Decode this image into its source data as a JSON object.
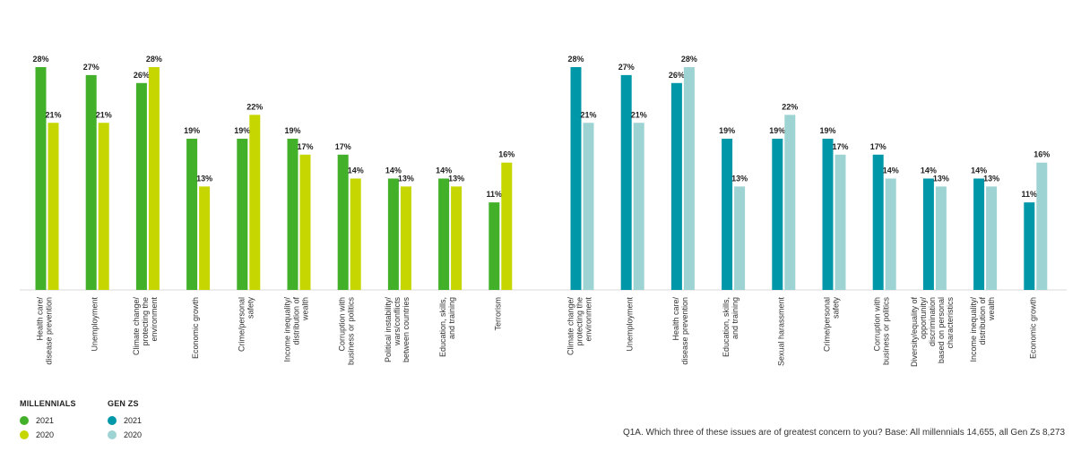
{
  "legend": {
    "millennials": {
      "title": "MILLENNIALS",
      "items": [
        {
          "label": "2021",
          "color": "#43b02a"
        },
        {
          "label": "2020",
          "color": "#c5d600"
        }
      ]
    },
    "genz": {
      "title": "GEN ZS",
      "items": [
        {
          "label": "2021",
          "color": "#0097a9"
        },
        {
          "label": "2020",
          "color": "#9dd4d3"
        }
      ]
    }
  },
  "footnote": "Q1A. Which three of these issues are of greatest concern to you? Base: All millennials 14,655, all Gen Zs 8,273",
  "chart_data": [
    {
      "type": "bar",
      "group": "Millennials",
      "categories": [
        [
          "Health care/",
          "disease prevention"
        ],
        [
          "Unemployment"
        ],
        [
          "Climate change/",
          "protecting the",
          "environment"
        ],
        [
          "Economic growth"
        ],
        [
          "Crime/personal",
          "safety"
        ],
        [
          "Income inequality/",
          "distribution of",
          "wealth"
        ],
        [
          "Corruption with",
          "business or politics"
        ],
        [
          "Political instability/",
          "wars/conflicts",
          "between countries"
        ],
        [
          "Education, skills,",
          "and training"
        ],
        [
          "Terrorism"
        ]
      ],
      "series": [
        {
          "name": "2021",
          "color": "#43b02a",
          "values": [
            28,
            27,
            26,
            19,
            19,
            19,
            17,
            14,
            14,
            11
          ]
        },
        {
          "name": "2020",
          "color": "#c5d600",
          "values": [
            21,
            21,
            28,
            13,
            22,
            17,
            14,
            13,
            13,
            16
          ]
        }
      ],
      "unit": "%",
      "ylim": [
        0,
        28
      ]
    },
    {
      "type": "bar",
      "group": "Gen Zs",
      "categories": [
        [
          "Climate change/",
          "protecting the",
          "environment"
        ],
        [
          "Unemployment"
        ],
        [
          "Health care/",
          "disease prevention"
        ],
        [
          "Education, skills,",
          "and training"
        ],
        [
          "Sexual harassment"
        ],
        [
          "Crime/personal",
          "safety"
        ],
        [
          "Corruption with",
          "business or politics"
        ],
        [
          "Diversity/equality of",
          "opportunity/",
          "discrimination",
          "based on personal",
          "characteristics"
        ],
        [
          "Income inequality/",
          "distribution of",
          "wealth"
        ],
        [
          "Economic growth"
        ]
      ],
      "series": [
        {
          "name": "2021",
          "color": "#0097a9",
          "values": [
            28,
            27,
            26,
            19,
            19,
            19,
            17,
            14,
            14,
            11
          ]
        },
        {
          "name": "2020",
          "color": "#9dd4d3",
          "values": [
            21,
            21,
            28,
            13,
            22,
            17,
            14,
            13,
            13,
            16
          ]
        }
      ],
      "unit": "%",
      "ylim": [
        0,
        28
      ]
    }
  ]
}
